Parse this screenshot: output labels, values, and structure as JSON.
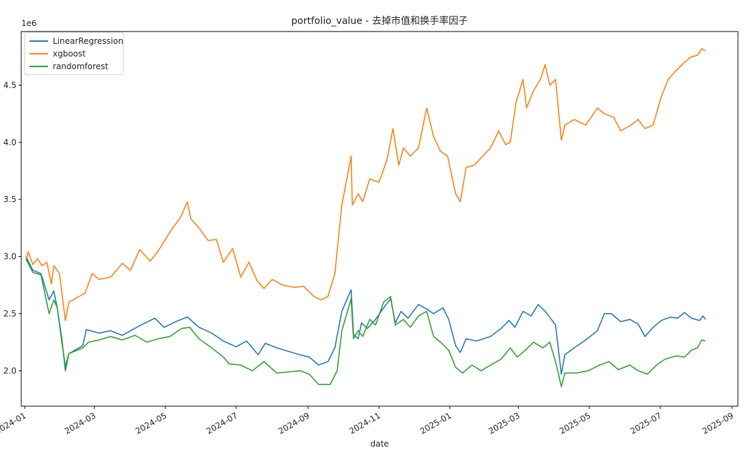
{
  "chart_data": {
    "type": "line",
    "title": "portfolio_value - 去掉市值和换手率因子",
    "xlabel": "date",
    "ylabel": "",
    "y_scale_label": "1e6",
    "xlim": [
      "2023-12-29",
      "2025-09-06"
    ],
    "ylim": [
      1.69,
      4.97
    ],
    "x_ticks": [
      "2024-01",
      "2024-03",
      "2024-05",
      "2024-07",
      "2024-09",
      "2024-11",
      "2025-01",
      "2025-03",
      "2025-05",
      "2025-07",
      "2025-09"
    ],
    "x_tick_dates": [
      "2024-01-01",
      "2024-03-01",
      "2024-05-01",
      "2024-07-01",
      "2024-09-01",
      "2024-11-01",
      "2025-01-01",
      "2025-03-01",
      "2025-05-01",
      "2025-07-01",
      "2025-09-01"
    ],
    "y_ticks": [
      2.0,
      2.5,
      3.0,
      3.5,
      4.0,
      4.5
    ],
    "y_tick_labels": [
      "2.0",
      "2.5",
      "3.0",
      "3.5",
      "4.0",
      "4.5"
    ],
    "legend": {
      "placement": "top-left"
    },
    "grid": false,
    "series": [
      {
        "name": "LinearRegression",
        "color": "#1f77b4",
        "points": [
          [
            "2024-01-02",
            3.0
          ],
          [
            "2024-01-08",
            2.88
          ],
          [
            "2024-01-15",
            2.85
          ],
          [
            "2024-01-22",
            2.62
          ],
          [
            "2024-01-26",
            2.7
          ],
          [
            "2024-01-29",
            2.55
          ],
          [
            "2024-02-02",
            2.28
          ],
          [
            "2024-02-05",
            2.0
          ],
          [
            "2024-02-08",
            2.15
          ],
          [
            "2024-02-20",
            2.22
          ],
          [
            "2024-02-23",
            2.36
          ],
          [
            "2024-03-05",
            2.33
          ],
          [
            "2024-03-15",
            2.35
          ],
          [
            "2024-03-25",
            2.31
          ],
          [
            "2024-04-01",
            2.35
          ],
          [
            "2024-04-10",
            2.4
          ],
          [
            "2024-04-22",
            2.46
          ],
          [
            "2024-04-30",
            2.38
          ],
          [
            "2024-05-10",
            2.43
          ],
          [
            "2024-05-20",
            2.47
          ],
          [
            "2024-05-30",
            2.38
          ],
          [
            "2024-06-10",
            2.33
          ],
          [
            "2024-06-20",
            2.26
          ],
          [
            "2024-07-01",
            2.21
          ],
          [
            "2024-07-10",
            2.26
          ],
          [
            "2024-07-20",
            2.14
          ],
          [
            "2024-07-26",
            2.24
          ],
          [
            "2024-08-05",
            2.2
          ],
          [
            "2024-08-15",
            2.17
          ],
          [
            "2024-08-25",
            2.14
          ],
          [
            "2024-09-02",
            2.12
          ],
          [
            "2024-09-10",
            2.05
          ],
          [
            "2024-09-18",
            2.08
          ],
          [
            "2024-09-24",
            2.2
          ],
          [
            "2024-09-30",
            2.52
          ],
          [
            "2024-10-08",
            2.71
          ],
          [
            "2024-10-10",
            2.32
          ],
          [
            "2024-10-14",
            2.28
          ],
          [
            "2024-10-17",
            2.42
          ],
          [
            "2024-10-22",
            2.37
          ],
          [
            "2024-10-29",
            2.45
          ],
          [
            "2024-11-05",
            2.55
          ],
          [
            "2024-11-11",
            2.63
          ],
          [
            "2024-11-15",
            2.42
          ],
          [
            "2024-11-20",
            2.52
          ],
          [
            "2024-11-26",
            2.46
          ],
          [
            "2024-12-05",
            2.58
          ],
          [
            "2024-12-12",
            2.54
          ],
          [
            "2024-12-18",
            2.5
          ],
          [
            "2024-12-26",
            2.55
          ],
          [
            "2024-12-31",
            2.45
          ],
          [
            "2025-01-06",
            2.22
          ],
          [
            "2025-01-10",
            2.16
          ],
          [
            "2025-01-15",
            2.28
          ],
          [
            "2025-01-24",
            2.26
          ],
          [
            "2025-02-05",
            2.3
          ],
          [
            "2025-02-14",
            2.37
          ],
          [
            "2025-02-21",
            2.44
          ],
          [
            "2025-02-26",
            2.38
          ],
          [
            "2025-03-05",
            2.52
          ],
          [
            "2025-03-12",
            2.48
          ],
          [
            "2025-03-18",
            2.58
          ],
          [
            "2025-03-25",
            2.51
          ],
          [
            "2025-04-02",
            2.4
          ],
          [
            "2025-04-07",
            1.97
          ],
          [
            "2025-04-10",
            2.14
          ],
          [
            "2025-04-18",
            2.2
          ],
          [
            "2025-04-28",
            2.27
          ],
          [
            "2025-05-08",
            2.35
          ],
          [
            "2025-05-14",
            2.5
          ],
          [
            "2025-05-20",
            2.5
          ],
          [
            "2025-05-28",
            2.43
          ],
          [
            "2025-06-05",
            2.45
          ],
          [
            "2025-06-12",
            2.41
          ],
          [
            "2025-06-18",
            2.3
          ],
          [
            "2025-06-25",
            2.38
          ],
          [
            "2025-07-02",
            2.44
          ],
          [
            "2025-07-10",
            2.47
          ],
          [
            "2025-07-16",
            2.46
          ],
          [
            "2025-07-22",
            2.51
          ],
          [
            "2025-07-28",
            2.46
          ],
          [
            "2025-08-04",
            2.44
          ],
          [
            "2025-08-07",
            2.48
          ],
          [
            "2025-08-09",
            2.45
          ]
        ]
      },
      {
        "name": "xgboost",
        "color": "#ff7f0e",
        "points": [
          [
            "2024-01-02",
            2.97
          ],
          [
            "2024-01-04",
            3.04
          ],
          [
            "2024-01-08",
            2.93
          ],
          [
            "2024-01-12",
            2.98
          ],
          [
            "2024-01-16",
            2.92
          ],
          [
            "2024-01-20",
            2.95
          ],
          [
            "2024-01-24",
            2.76
          ],
          [
            "2024-01-26",
            2.92
          ],
          [
            "2024-01-31",
            2.85
          ],
          [
            "2024-02-03",
            2.6
          ],
          [
            "2024-02-05",
            2.44
          ],
          [
            "2024-02-08",
            2.6
          ],
          [
            "2024-02-22",
            2.68
          ],
          [
            "2024-02-28",
            2.85
          ],
          [
            "2024-03-05",
            2.8
          ],
          [
            "2024-03-15",
            2.82
          ],
          [
            "2024-03-25",
            2.94
          ],
          [
            "2024-04-01",
            2.88
          ],
          [
            "2024-04-09",
            3.06
          ],
          [
            "2024-04-18",
            2.96
          ],
          [
            "2024-04-25",
            3.05
          ],
          [
            "2024-05-06",
            3.23
          ],
          [
            "2024-05-14",
            3.34
          ],
          [
            "2024-05-20",
            3.48
          ],
          [
            "2024-05-23",
            3.33
          ],
          [
            "2024-05-30",
            3.25
          ],
          [
            "2024-06-07",
            3.14
          ],
          [
            "2024-06-14",
            3.15
          ],
          [
            "2024-06-20",
            2.95
          ],
          [
            "2024-06-28",
            3.07
          ],
          [
            "2024-07-05",
            2.82
          ],
          [
            "2024-07-12",
            2.95
          ],
          [
            "2024-07-19",
            2.79
          ],
          [
            "2024-07-25",
            2.72
          ],
          [
            "2024-08-01",
            2.8
          ],
          [
            "2024-08-10",
            2.75
          ],
          [
            "2024-08-20",
            2.73
          ],
          [
            "2024-08-28",
            2.74
          ],
          [
            "2024-09-06",
            2.65
          ],
          [
            "2024-09-12",
            2.62
          ],
          [
            "2024-09-18",
            2.65
          ],
          [
            "2024-09-24",
            2.85
          ],
          [
            "2024-09-30",
            3.45
          ],
          [
            "2024-10-08",
            3.88
          ],
          [
            "2024-10-09",
            3.45
          ],
          [
            "2024-10-14",
            3.55
          ],
          [
            "2024-10-18",
            3.48
          ],
          [
            "2024-10-24",
            3.68
          ],
          [
            "2024-11-01",
            3.65
          ],
          [
            "2024-11-08",
            3.85
          ],
          [
            "2024-11-13",
            4.12
          ],
          [
            "2024-11-18",
            3.8
          ],
          [
            "2024-11-22",
            3.95
          ],
          [
            "2024-11-28",
            3.88
          ],
          [
            "2024-12-05",
            3.95
          ],
          [
            "2024-12-12",
            4.3
          ],
          [
            "2024-12-18",
            4.05
          ],
          [
            "2024-12-24",
            3.92
          ],
          [
            "2024-12-30",
            3.88
          ],
          [
            "2025-01-06",
            3.55
          ],
          [
            "2025-01-10",
            3.48
          ],
          [
            "2025-01-15",
            3.78
          ],
          [
            "2025-01-22",
            3.8
          ],
          [
            "2025-02-05",
            3.95
          ],
          [
            "2025-02-12",
            4.1
          ],
          [
            "2025-02-18",
            3.98
          ],
          [
            "2025-02-22",
            4.0
          ],
          [
            "2025-02-27",
            4.35
          ],
          [
            "2025-03-05",
            4.55
          ],
          [
            "2025-03-08",
            4.3
          ],
          [
            "2025-03-14",
            4.45
          ],
          [
            "2025-03-20",
            4.55
          ],
          [
            "2025-03-24",
            4.68
          ],
          [
            "2025-03-28",
            4.5
          ],
          [
            "2025-04-02",
            4.55
          ],
          [
            "2025-04-07",
            4.02
          ],
          [
            "2025-04-10",
            4.15
          ],
          [
            "2025-04-18",
            4.2
          ],
          [
            "2025-04-28",
            4.15
          ],
          [
            "2025-05-08",
            4.3
          ],
          [
            "2025-05-14",
            4.25
          ],
          [
            "2025-05-22",
            4.22
          ],
          [
            "2025-05-28",
            4.1
          ],
          [
            "2025-06-06",
            4.15
          ],
          [
            "2025-06-12",
            4.2
          ],
          [
            "2025-06-18",
            4.12
          ],
          [
            "2025-06-25",
            4.15
          ],
          [
            "2025-07-02",
            4.4
          ],
          [
            "2025-07-08",
            4.55
          ],
          [
            "2025-07-15",
            4.63
          ],
          [
            "2025-07-22",
            4.7
          ],
          [
            "2025-07-28",
            4.75
          ],
          [
            "2025-08-02",
            4.76
          ],
          [
            "2025-08-06",
            4.82
          ],
          [
            "2025-08-09",
            4.8
          ]
        ]
      },
      {
        "name": "randomforest",
        "color": "#2ca02c",
        "points": [
          [
            "2024-01-02",
            2.98
          ],
          [
            "2024-01-08",
            2.86
          ],
          [
            "2024-01-15",
            2.84
          ],
          [
            "2024-01-22",
            2.5
          ],
          [
            "2024-01-26",
            2.62
          ],
          [
            "2024-01-29",
            2.55
          ],
          [
            "2024-02-02",
            2.25
          ],
          [
            "2024-02-05",
            2.04
          ],
          [
            "2024-02-08",
            2.15
          ],
          [
            "2024-02-20",
            2.2
          ],
          [
            "2024-02-25",
            2.25
          ],
          [
            "2024-03-05",
            2.27
          ],
          [
            "2024-03-15",
            2.3
          ],
          [
            "2024-03-25",
            2.27
          ],
          [
            "2024-04-05",
            2.31
          ],
          [
            "2024-04-15",
            2.25
          ],
          [
            "2024-04-25",
            2.28
          ],
          [
            "2024-05-05",
            2.3
          ],
          [
            "2024-05-15",
            2.37
          ],
          [
            "2024-05-22",
            2.38
          ],
          [
            "2024-05-30",
            2.28
          ],
          [
            "2024-06-10",
            2.2
          ],
          [
            "2024-06-20",
            2.12
          ],
          [
            "2024-06-25",
            2.06
          ],
          [
            "2024-07-05",
            2.05
          ],
          [
            "2024-07-15",
            2.0
          ],
          [
            "2024-07-25",
            2.08
          ],
          [
            "2024-08-05",
            1.98
          ],
          [
            "2024-08-15",
            1.99
          ],
          [
            "2024-08-25",
            2.0
          ],
          [
            "2024-09-02",
            1.97
          ],
          [
            "2024-09-10",
            1.88
          ],
          [
            "2024-09-20",
            1.88
          ],
          [
            "2024-09-26",
            2.0
          ],
          [
            "2024-09-30",
            2.35
          ],
          [
            "2024-10-08",
            2.63
          ],
          [
            "2024-10-10",
            2.28
          ],
          [
            "2024-10-14",
            2.35
          ],
          [
            "2024-10-18",
            2.3
          ],
          [
            "2024-10-24",
            2.45
          ],
          [
            "2024-10-29",
            2.4
          ],
          [
            "2024-11-05",
            2.6
          ],
          [
            "2024-11-11",
            2.65
          ],
          [
            "2024-11-15",
            2.4
          ],
          [
            "2024-11-22",
            2.45
          ],
          [
            "2024-11-28",
            2.38
          ],
          [
            "2024-12-05",
            2.48
          ],
          [
            "2024-12-12",
            2.52
          ],
          [
            "2024-12-18",
            2.3
          ],
          [
            "2024-12-24",
            2.25
          ],
          [
            "2024-12-31",
            2.18
          ],
          [
            "2025-01-06",
            2.03
          ],
          [
            "2025-01-12",
            1.98
          ],
          [
            "2025-01-20",
            2.05
          ],
          [
            "2025-01-28",
            2.0
          ],
          [
            "2025-02-05",
            2.05
          ],
          [
            "2025-02-14",
            2.1
          ],
          [
            "2025-02-22",
            2.2
          ],
          [
            "2025-02-28",
            2.12
          ],
          [
            "2025-03-07",
            2.18
          ],
          [
            "2025-03-14",
            2.25
          ],
          [
            "2025-03-22",
            2.2
          ],
          [
            "2025-03-28",
            2.25
          ],
          [
            "2025-04-02",
            2.08
          ],
          [
            "2025-04-07",
            1.86
          ],
          [
            "2025-04-10",
            1.98
          ],
          [
            "2025-04-20",
            1.98
          ],
          [
            "2025-04-30",
            2.0
          ],
          [
            "2025-05-10",
            2.05
          ],
          [
            "2025-05-18",
            2.08
          ],
          [
            "2025-05-26",
            2.01
          ],
          [
            "2025-06-05",
            2.05
          ],
          [
            "2025-06-12",
            2.0
          ],
          [
            "2025-06-20",
            1.97
          ],
          [
            "2025-06-28",
            2.05
          ],
          [
            "2025-07-05",
            2.1
          ],
          [
            "2025-07-15",
            2.13
          ],
          [
            "2025-07-22",
            2.12
          ],
          [
            "2025-07-28",
            2.18
          ],
          [
            "2025-08-02",
            2.2
          ],
          [
            "2025-08-06",
            2.27
          ],
          [
            "2025-08-09",
            2.26
          ]
        ]
      }
    ]
  }
}
